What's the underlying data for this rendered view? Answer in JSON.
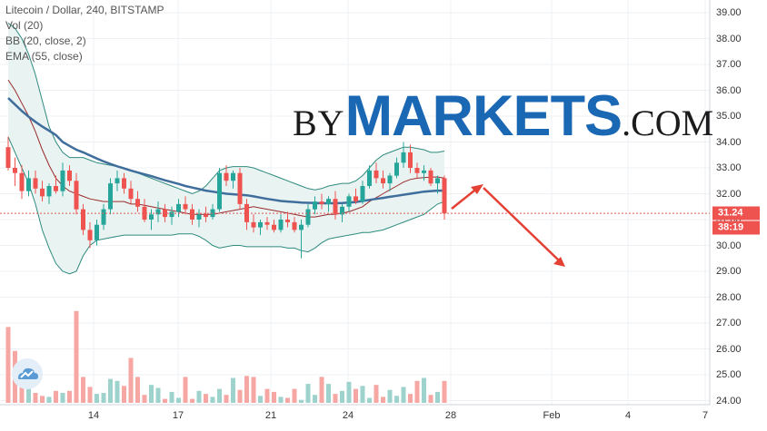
{
  "legend": {
    "line1": "Litecoin / Dollar, 240, BITSTAMP",
    "line2": "Vol (20)",
    "line3": "BB (20, close, 2)",
    "line4": "EMA (55, close)"
  },
  "brand": {
    "by": "BY",
    "markets": "MARKETS",
    "com": ".COM"
  },
  "colors": {
    "up": "#26a69a",
    "down": "#ef5350",
    "volume_up": "#9ed3cd",
    "volume_down": "#f7a7a3",
    "ema": "#3f6e9c",
    "bb_basis": "#9a2b2b",
    "bb_bands": "#2e8b7f",
    "bb_fill": "#e9f3f2",
    "arrow": "#e44034",
    "price_line": "#e05a5a",
    "grid": "#eef0f3"
  },
  "chart_data": {
    "type": "candlestick",
    "ylim": [
      24.0,
      39.0
    ],
    "y_ticks": [
      "39.00",
      "38.00",
      "37.00",
      "36.00",
      "35.00",
      "34.00",
      "33.00",
      "32.00",
      "31.00",
      "30.00",
      "29.00",
      "28.00",
      "27.00",
      "26.00",
      "25.00",
      "24.00"
    ],
    "x_ticks": [
      "14",
      "17",
      "21",
      "24",
      "28",
      "Feb",
      "4",
      "7"
    ],
    "last_price": "31.24",
    "countdown": "38:19",
    "ohlc": [
      [
        33.8,
        34.2,
        32.9,
        33.0
      ],
      [
        33.0,
        33.4,
        32.3,
        32.8
      ],
      [
        32.8,
        33.1,
        31.8,
        32.1
      ],
      [
        32.1,
        32.9,
        31.9,
        32.6
      ],
      [
        32.6,
        32.9,
        32.0,
        32.2
      ],
      [
        32.2,
        32.5,
        31.7,
        31.9
      ],
      [
        31.9,
        32.4,
        31.6,
        32.3
      ],
      [
        32.3,
        32.7,
        32.0,
        32.1
      ],
      [
        32.1,
        33.2,
        31.9,
        32.9
      ],
      [
        32.9,
        33.1,
        32.3,
        32.5
      ],
      [
        32.5,
        32.8,
        31.2,
        31.4
      ],
      [
        31.4,
        31.6,
        30.4,
        30.6
      ],
      [
        30.6,
        30.9,
        29.9,
        30.2
      ],
      [
        30.2,
        31.0,
        30.0,
        30.8
      ],
      [
        30.8,
        31.6,
        30.6,
        31.4
      ],
      [
        31.4,
        32.6,
        31.2,
        32.4
      ],
      [
        32.4,
        32.9,
        32.1,
        32.6
      ],
      [
        32.6,
        32.8,
        32.0,
        32.2
      ],
      [
        32.2,
        32.5,
        31.6,
        31.8
      ],
      [
        31.8,
        32.1,
        31.3,
        31.5
      ],
      [
        31.5,
        31.8,
        30.9,
        31.0
      ],
      [
        31.0,
        31.4,
        30.6,
        31.2
      ],
      [
        31.2,
        31.7,
        30.9,
        31.4
      ],
      [
        31.4,
        31.6,
        30.9,
        31.1
      ],
      [
        31.1,
        31.5,
        30.8,
        31.3
      ],
      [
        31.3,
        31.8,
        31.1,
        31.6
      ],
      [
        31.6,
        31.9,
        31.2,
        31.4
      ],
      [
        31.4,
        31.6,
        30.8,
        31.0
      ],
      [
        31.0,
        31.4,
        30.7,
        31.2
      ],
      [
        31.2,
        31.5,
        30.9,
        31.1
      ],
      [
        31.1,
        31.6,
        31.0,
        31.4
      ],
      [
        31.4,
        33.0,
        31.3,
        32.8
      ],
      [
        32.8,
        33.1,
        32.3,
        32.5
      ],
      [
        32.5,
        32.9,
        32.2,
        32.8
      ],
      [
        32.8,
        33.0,
        31.4,
        31.6
      ],
      [
        31.6,
        31.8,
        30.6,
        30.9
      ],
      [
        30.9,
        31.2,
        30.5,
        30.7
      ],
      [
        30.7,
        31.0,
        30.4,
        30.9
      ],
      [
        30.9,
        31.1,
        30.6,
        30.8
      ],
      [
        30.8,
        31.0,
        30.5,
        30.6
      ],
      [
        30.6,
        31.2,
        30.5,
        31.0
      ],
      [
        31.0,
        31.3,
        30.7,
        30.9
      ],
      [
        30.9,
        31.1,
        30.5,
        30.6
      ],
      [
        30.6,
        31.0,
        29.5,
        30.8
      ],
      [
        30.8,
        31.6,
        30.7,
        31.4
      ],
      [
        31.4,
        31.9,
        31.2,
        31.7
      ],
      [
        31.7,
        32.0,
        31.4,
        31.6
      ],
      [
        31.6,
        31.9,
        31.3,
        31.8
      ],
      [
        31.8,
        32.1,
        31.0,
        31.2
      ],
      [
        31.2,
        31.6,
        30.9,
        31.5
      ],
      [
        31.5,
        32.0,
        31.3,
        31.9
      ],
      [
        31.9,
        32.2,
        31.6,
        31.7
      ],
      [
        31.7,
        32.5,
        31.6,
        32.3
      ],
      [
        32.3,
        33.1,
        32.2,
        32.9
      ],
      [
        32.9,
        33.2,
        32.4,
        32.6
      ],
      [
        32.6,
        32.9,
        32.2,
        32.4
      ],
      [
        32.4,
        32.8,
        32.1,
        32.7
      ],
      [
        32.7,
        33.4,
        32.6,
        33.2
      ],
      [
        33.2,
        34.0,
        33.0,
        33.6
      ],
      [
        33.6,
        33.9,
        32.8,
        33.0
      ],
      [
        33.0,
        33.2,
        32.6,
        32.8
      ],
      [
        32.8,
        33.1,
        32.5,
        32.9
      ],
      [
        32.9,
        33.0,
        32.3,
        32.4
      ],
      [
        32.4,
        32.7,
        32.0,
        32.6
      ],
      [
        32.6,
        32.7,
        31.0,
        31.24
      ]
    ],
    "volume": [
      7.6,
      5.2,
      2.3,
      1.6,
      1.0,
      0.7,
      0.6,
      1.2,
      1.0,
      1.2,
      9.2,
      2.6,
      1.6,
      0.9,
      1.0,
      2.4,
      2.2,
      1.7,
      4.5,
      2.6,
      0.8,
      1.8,
      1.5,
      0.4,
      1.1,
      0.5,
      2.6,
      0.4,
      1.2,
      0.9,
      0.6,
      1.4,
      0.8,
      2.5,
      1.3,
      2.7,
      2.6,
      0.7,
      1.4,
      1.1,
      0.6,
      0.5,
      1.4,
      0.3,
      1.9,
      0.8,
      2.6,
      1.9,
      0.9,
      1.2,
      2.1,
      1.4,
      1.7,
      0.5,
      1.8,
      0.6,
      1.3,
      0.7,
      1.6,
      0.9,
      2.2,
      2.5,
      0.8,
      1.1,
      2.2
    ],
    "ema55": [
      35.7,
      35.45,
      35.2,
      34.98,
      34.78,
      34.6,
      34.44,
      34.27,
      34.0,
      33.85,
      33.7,
      33.6,
      33.48,
      33.36,
      33.25,
      33.15,
      33.06,
      32.98,
      32.9,
      32.82,
      32.75,
      32.68,
      32.6,
      32.52,
      32.45,
      32.38,
      32.3,
      32.24,
      32.18,
      32.12,
      32.08,
      32.04,
      32.0,
      31.98,
      31.96,
      31.94,
      31.9,
      31.85,
      31.8,
      31.76,
      31.72,
      31.7,
      31.68,
      31.66,
      31.65,
      31.64,
      31.63,
      31.63,
      31.63,
      31.64,
      31.66,
      31.68,
      31.72,
      31.76,
      31.8,
      31.84,
      31.88,
      31.92,
      31.96,
      32.0,
      32.04,
      32.08,
      32.1,
      32.12,
      32.12
    ],
    "bb_basis": [
      36.4,
      36.0,
      35.5,
      35.0,
      34.4,
      33.7,
      33.1,
      32.6,
      32.3,
      32.1,
      32.0,
      31.9,
      31.8,
      31.75,
      31.7,
      31.7,
      31.7,
      31.7,
      31.6,
      31.6,
      31.55,
      31.5,
      31.45,
      31.4,
      31.35,
      31.3,
      31.25,
      31.2,
      31.2,
      31.2,
      31.2,
      31.25,
      31.3,
      31.35,
      31.4,
      31.45,
      31.5,
      31.45,
      31.4,
      31.35,
      31.3,
      31.25,
      31.2,
      31.15,
      31.1,
      31.1,
      31.15,
      31.2,
      31.2,
      31.25,
      31.3,
      31.4,
      31.5,
      31.7,
      31.85,
      32.0,
      32.15,
      32.3,
      32.45,
      32.55,
      32.6,
      32.62,
      32.64,
      32.65,
      32.6
    ],
    "bb_upper": [
      38.6,
      38.4,
      38.0,
      37.4,
      36.6,
      35.6,
      34.6,
      34.0,
      33.6,
      33.4,
      33.4,
      33.4,
      33.3,
      33.2,
      33.15,
      33.1,
      33.05,
      33.0,
      32.9,
      32.8,
      32.7,
      32.6,
      32.5,
      32.4,
      32.3,
      32.2,
      32.1,
      32.0,
      32.1,
      32.3,
      32.6,
      32.9,
      33.0,
      33.05,
      33.05,
      33.05,
      33.0,
      32.9,
      32.8,
      32.7,
      32.6,
      32.5,
      32.4,
      32.3,
      32.2,
      32.15,
      32.2,
      32.3,
      32.35,
      32.4,
      32.4,
      32.5,
      32.7,
      33.0,
      33.3,
      33.5,
      33.6,
      33.7,
      33.8,
      33.8,
      33.75,
      33.7,
      33.6,
      33.6,
      33.65
    ],
    "bb_lower": [
      34.2,
      33.6,
      33.0,
      32.4,
      31.6,
      30.6,
      29.9,
      29.3,
      29.0,
      28.9,
      29.0,
      29.6,
      30.0,
      30.2,
      30.25,
      30.3,
      30.35,
      30.4,
      30.4,
      30.4,
      30.4,
      30.4,
      30.4,
      30.4,
      30.4,
      30.45,
      30.45,
      30.45,
      30.35,
      30.2,
      30.0,
      29.9,
      29.95,
      30.0,
      30.0,
      29.95,
      29.95,
      29.95,
      29.95,
      29.95,
      29.95,
      29.9,
      29.9,
      29.8,
      29.75,
      29.9,
      30.1,
      30.25,
      30.3,
      30.35,
      30.4,
      30.45,
      30.5,
      30.5,
      30.55,
      30.6,
      30.7,
      30.8,
      30.9,
      31.0,
      31.1,
      31.2,
      31.4,
      31.6,
      31.7
    ]
  }
}
